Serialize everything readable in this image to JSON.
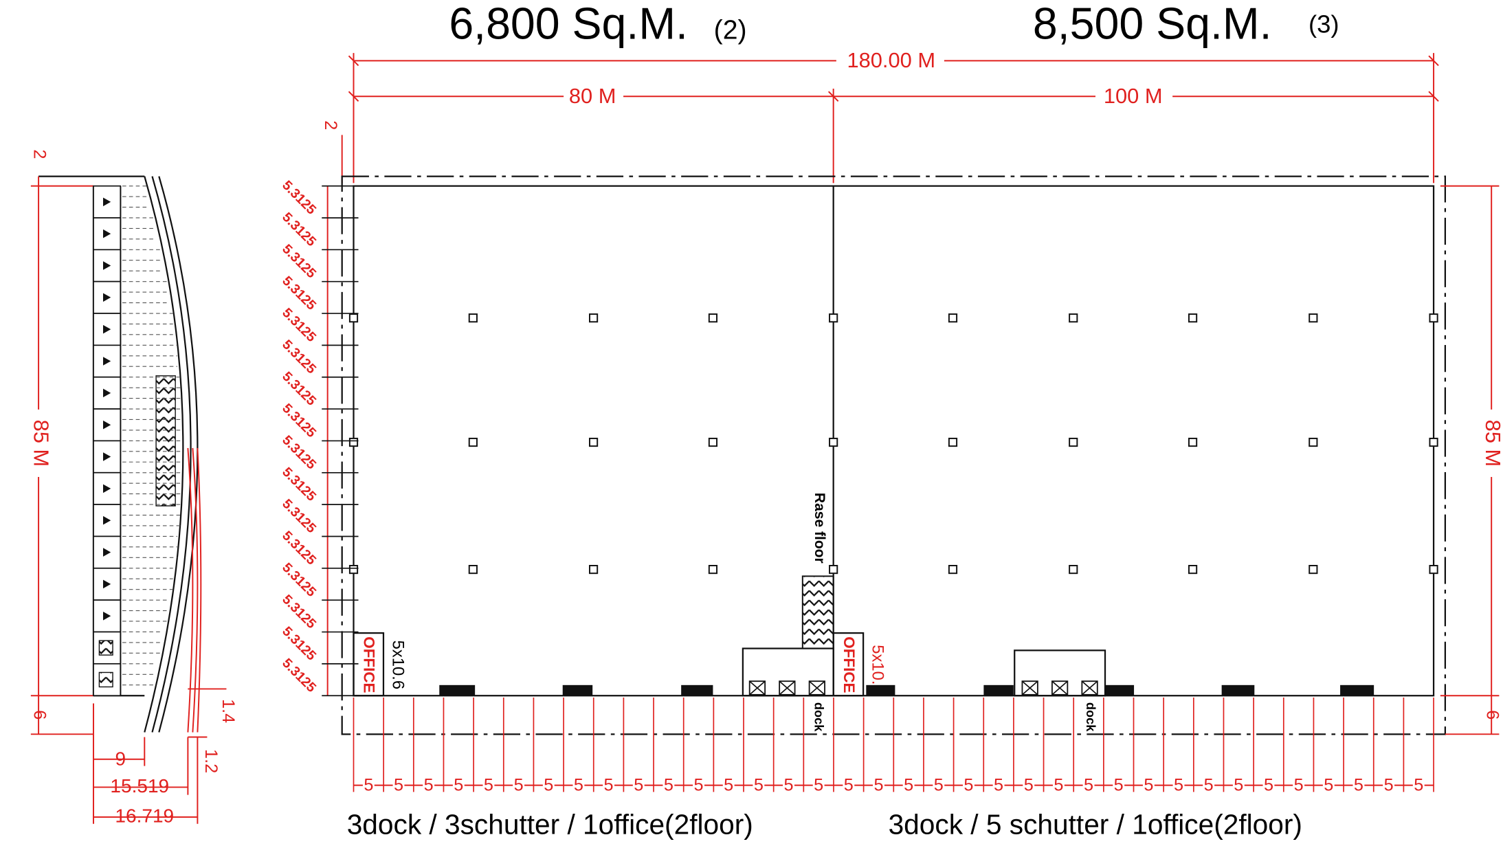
{
  "areas": [
    {
      "label": "6,800 Sq.M.",
      "unit_no": "(2)",
      "caption": "3dock / 3schutter / 1office(2floor)"
    },
    {
      "label": "8,500 Sq.M.",
      "unit_no": "(3)",
      "caption": "3dock / 5 schutter / 1office(2floor)"
    }
  ],
  "dimensions": {
    "total": "180.00 M",
    "left": "80 M",
    "right": "100 M",
    "top_offset": "2",
    "height": "85 M",
    "bottom_offset": "6"
  },
  "bay_spacing": [
    "5.3125",
    "5.3125",
    "5.3125",
    "5.3125",
    "5.3125",
    "5.3125",
    "5.3125",
    "5.3125",
    "5.3125",
    "5.3125",
    "5.3125",
    "5.3125",
    "5.3125",
    "5.3125",
    "5.3125",
    "5.3125"
  ],
  "bottom_spacing": [
    "5",
    "5",
    "5",
    "5",
    "5",
    "5",
    "5",
    "5",
    "5",
    "5",
    "5",
    "5",
    "5",
    "5",
    "5",
    "5",
    "5",
    "5",
    "5",
    "5",
    "5",
    "5",
    "5",
    "5",
    "5",
    "5",
    "5",
    "5",
    "5",
    "5",
    "5",
    "5",
    "5",
    "5",
    "5",
    "5"
  ],
  "rooms": {
    "office": [
      "OFFICE",
      "OFFICE"
    ],
    "office_size": [
      "5x10.6",
      "5x10."
    ],
    "dock": [
      "dock",
      "dock"
    ],
    "rase_floor": "Rase floor"
  },
  "section": {
    "top": "2",
    "height": "85 M",
    "bottom": "6",
    "width_1": "9",
    "width_2": "15.519",
    "width_3": "16.719",
    "offset_1": "1.4",
    "offset_2": "1.2"
  }
}
